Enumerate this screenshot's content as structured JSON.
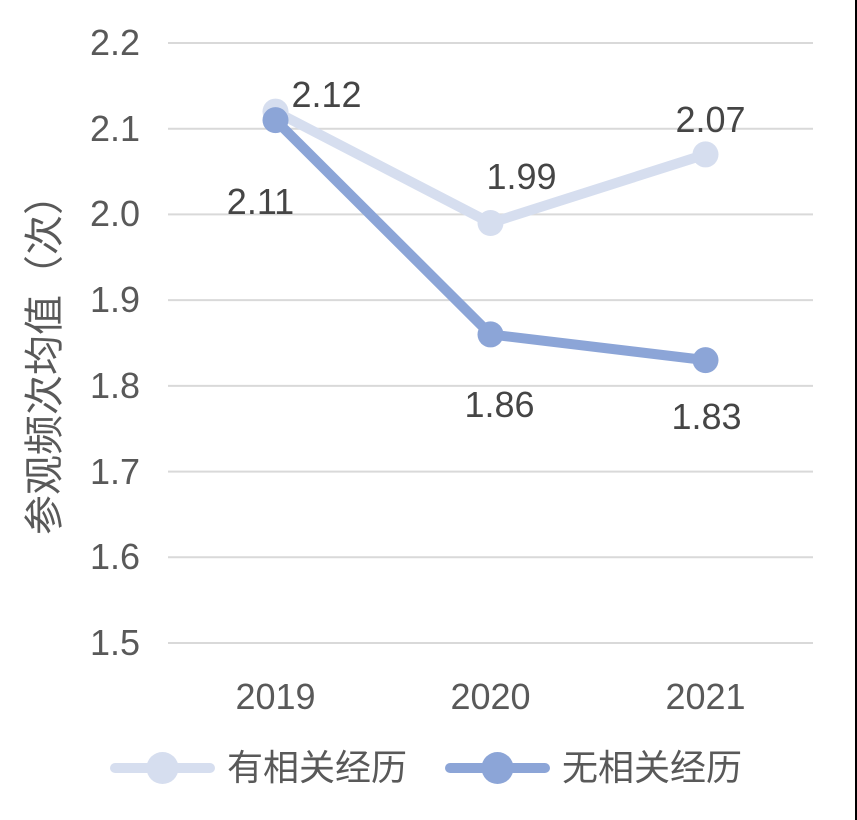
{
  "chart_data": {
    "type": "line",
    "categories": [
      "2019",
      "2020",
      "2021"
    ],
    "series": [
      {
        "name": "有相关经历",
        "values": [
          2.12,
          1.99,
          2.07
        ],
        "labels": [
          "2.12",
          "1.99",
          "2.07"
        ],
        "color": "#D6DEEF"
      },
      {
        "name": "无相关经历",
        "values": [
          2.11,
          1.86,
          1.83
        ],
        "labels": [
          "2.11",
          "1.86",
          "1.83"
        ],
        "color": "#8CA5D7"
      }
    ],
    "title": "",
    "xlabel": "",
    "ylabel": "参观频次均值（次）",
    "ylim": [
      1.5,
      2.2
    ],
    "yticks": [
      2.2,
      2.1,
      2.0,
      1.9,
      1.8,
      1.7,
      1.6,
      1.5
    ],
    "ytick_labels": [
      "2.2",
      "2.1",
      "2.0",
      "1.9",
      "1.8",
      "1.7",
      "1.6",
      "1.5"
    ],
    "grid": true,
    "legend_position": "bottom"
  },
  "colors": {
    "background": "#FFFFFF",
    "gridline": "#D9D9D9",
    "axis_text": "#595959",
    "data_label_text": "#454545",
    "series_light": "#D6DEEF",
    "series_dark": "#8CA5D7",
    "right_border": "#000000"
  }
}
